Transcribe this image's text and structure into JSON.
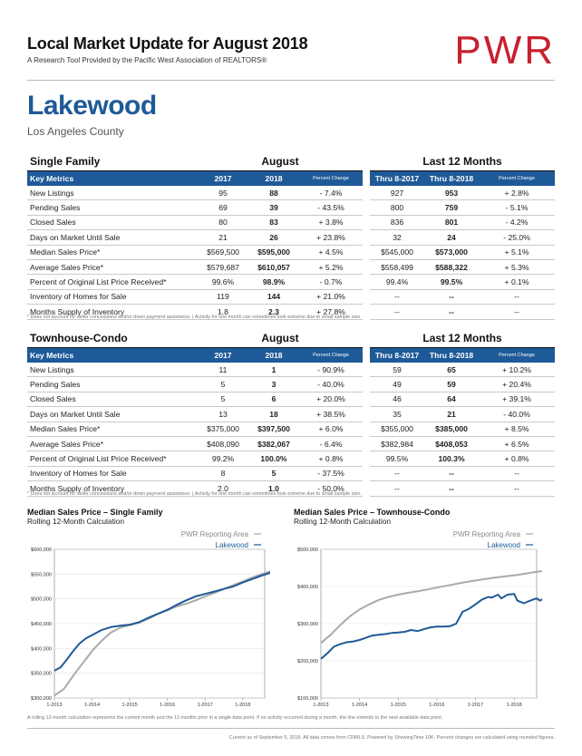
{
  "header": {
    "title": "Local Market Update for August 2018",
    "subtitle": "A Research Tool Provided by the Pacific West Association of REALTORS®",
    "logo_text": "PWR",
    "logo_color": "#c8202f"
  },
  "location": {
    "city": "Lakewood",
    "county": "Los Angeles County"
  },
  "accent_color": "#1f5a98",
  "tables": [
    {
      "section": "Single Family",
      "period_a": "August",
      "period_b": "Last 12 Months",
      "columns": [
        "Key Metrics",
        "2017",
        "2018",
        "Percent Change",
        "Thru 8-2017",
        "Thru 8-2018",
        "Percent Change"
      ],
      "rows": [
        [
          "New Listings",
          "95",
          "88",
          "- 7.4%",
          "927",
          "953",
          "+ 2.8%"
        ],
        [
          "Pending Sales",
          "69",
          "39",
          "- 43.5%",
          "800",
          "759",
          "- 5.1%"
        ],
        [
          "Closed Sales",
          "80",
          "83",
          "+ 3.8%",
          "836",
          "801",
          "- 4.2%"
        ],
        [
          "Days on Market Until Sale",
          "21",
          "26",
          "+ 23.8%",
          "32",
          "24",
          "- 25.0%"
        ],
        [
          "Median Sales Price*",
          "$569,500",
          "$595,000",
          "+ 4.5%",
          "$545,000",
          "$573,000",
          "+ 5.1%"
        ],
        [
          "Average Sales Price*",
          "$579,687",
          "$610,057",
          "+ 5.2%",
          "$558,499",
          "$588,322",
          "+ 5.3%"
        ],
        [
          "Percent of Original List Price Received*",
          "99.6%",
          "98.9%",
          "- 0.7%",
          "99.4%",
          "99.5%",
          "+ 0.1%"
        ],
        [
          "Inventory of Homes for Sale",
          "119",
          "144",
          "+ 21.0%",
          "--",
          "--",
          "--"
        ],
        [
          "Months Supply of Inventory",
          "1.8",
          "2.3",
          "+ 27.8%",
          "--",
          "--",
          "--"
        ]
      ],
      "footnote": "* Does not account for seller concessions and/or down payment assistance.  |  Activity for one month can sometimes look extreme due to small sample size."
    },
    {
      "section": "Townhouse-Condo",
      "period_a": "August",
      "period_b": "Last 12 Months",
      "columns": [
        "Key Metrics",
        "2017",
        "2018",
        "Percent Change",
        "Thru 8-2017",
        "Thru 8-2018",
        "Percent Change"
      ],
      "rows": [
        [
          "New Listings",
          "11",
          "1",
          "- 90.9%",
          "59",
          "65",
          "+ 10.2%"
        ],
        [
          "Pending Sales",
          "5",
          "3",
          "- 40.0%",
          "49",
          "59",
          "+ 20.4%"
        ],
        [
          "Closed Sales",
          "5",
          "6",
          "+ 20.0%",
          "46",
          "64",
          "+ 39.1%"
        ],
        [
          "Days on Market Until Sale",
          "13",
          "18",
          "+ 38.5%",
          "35",
          "21",
          "- 40.0%"
        ],
        [
          "Median Sales Price*",
          "$375,000",
          "$397,500",
          "+ 6.0%",
          "$355,000",
          "$385,000",
          "+ 8.5%"
        ],
        [
          "Average Sales Price*",
          "$408,090",
          "$382,067",
          "- 6.4%",
          "$382,984",
          "$408,053",
          "+ 6.5%"
        ],
        [
          "Percent of Original List Price Received*",
          "99.2%",
          "100.0%",
          "+ 0.8%",
          "99.5%",
          "100.3%",
          "+ 0.8%"
        ],
        [
          "Inventory of Homes for Sale",
          "8",
          "5",
          "- 37.5%",
          "--",
          "--",
          "--"
        ],
        [
          "Months Supply of Inventory",
          "2.0",
          "1.0",
          "- 50.0%",
          "--",
          "--",
          "--"
        ]
      ],
      "footnote": "* Does not account for seller concessions and/or down payment assistance.  |  Activity for one month can sometimes look extreme due to small sample size."
    }
  ],
  "chart_data": [
    {
      "type": "line",
      "title": "Median Sales Price – Single Family",
      "subtitle": "Rolling 12-Month Calculation",
      "x_ticks": [
        "1-2013",
        "1-2014",
        "1-2015",
        "1-2016",
        "1-2017",
        "1-2018"
      ],
      "y_ticks": [
        "$300,000",
        "$350,000",
        "$400,000",
        "$450,000",
        "$500,000",
        "$550,000",
        "$600,000"
      ],
      "ylim": [
        300000,
        600000
      ],
      "x_start": "2013-01",
      "x_end": "2018-08",
      "series": [
        {
          "name": "PWR Reporting Area",
          "color": "#aaaaaa",
          "values": [
            [
              0,
              305000
            ],
            [
              3,
              318000
            ],
            [
              6,
              345000
            ],
            [
              9,
              370000
            ],
            [
              12,
              395000
            ],
            [
              15,
              415000
            ],
            [
              18,
              432000
            ],
            [
              21,
              442000
            ],
            [
              24,
              447000
            ],
            [
              27,
              452000
            ],
            [
              30,
              460000
            ],
            [
              33,
              470000
            ],
            [
              36,
              477000
            ],
            [
              39,
              485000
            ],
            [
              42,
              490000
            ],
            [
              45,
              497000
            ],
            [
              48,
              505000
            ],
            [
              51,
              512000
            ],
            [
              54,
              520000
            ],
            [
              57,
              528000
            ],
            [
              60,
              535000
            ],
            [
              63,
              543000
            ],
            [
              66,
              550000
            ],
            [
              69,
              556000
            ],
            [
              72,
              563000
            ],
            [
              75,
              567000
            ],
            [
              79,
              571000
            ]
          ]
        },
        {
          "name": "Lakewood",
          "color": "#1f5a98",
          "values": [
            [
              0,
              355000
            ],
            [
              2,
              362000
            ],
            [
              4,
              378000
            ],
            [
              6,
              395000
            ],
            [
              8,
              410000
            ],
            [
              10,
              420000
            ],
            [
              12,
              427000
            ],
            [
              15,
              437000
            ],
            [
              18,
              443000
            ],
            [
              21,
              446000
            ],
            [
              24,
              448000
            ],
            [
              27,
              453000
            ],
            [
              30,
              462000
            ],
            [
              33,
              470000
            ],
            [
              36,
              478000
            ],
            [
              39,
              488000
            ],
            [
              42,
              497000
            ],
            [
              45,
              505000
            ],
            [
              48,
              510000
            ],
            [
              51,
              515000
            ],
            [
              54,
              520000
            ],
            [
              57,
              525000
            ],
            [
              60,
              533000
            ],
            [
              63,
              540000
            ],
            [
              66,
              547000
            ],
            [
              69,
              553000
            ],
            [
              72,
              560000
            ],
            [
              75,
              565000
            ],
            [
              79,
              572000
            ]
          ]
        }
      ]
    },
    {
      "type": "line",
      "title": "Median Sales Price – Townhouse-Condo",
      "subtitle": "Rolling 12-Month Calculation",
      "x_ticks": [
        "1-2013",
        "1-2014",
        "1-2015",
        "1-2016",
        "1-2017",
        "1-2018"
      ],
      "y_ticks": [
        "$100,000",
        "$200,000",
        "$300,000",
        "$400,000",
        "$500,000"
      ],
      "ylim": [
        100000,
        500000
      ],
      "x_start": "2013-01",
      "x_end": "2018-08",
      "series": [
        {
          "name": "PWR Reporting Area",
          "color": "#aaaaaa",
          "values": [
            [
              0,
              248000
            ],
            [
              3,
              270000
            ],
            [
              6,
              296000
            ],
            [
              9,
              320000
            ],
            [
              12,
              338000
            ],
            [
              15,
              352000
            ],
            [
              18,
              364000
            ],
            [
              21,
              372000
            ],
            [
              24,
              378000
            ],
            [
              27,
              383000
            ],
            [
              30,
              387000
            ],
            [
              33,
              392000
            ],
            [
              36,
              397000
            ],
            [
              39,
              402000
            ],
            [
              42,
              407000
            ],
            [
              45,
              412000
            ],
            [
              48,
              416000
            ],
            [
              51,
              420000
            ],
            [
              54,
              424000
            ],
            [
              57,
              427000
            ],
            [
              60,
              430000
            ],
            [
              63,
              434000
            ],
            [
              66,
              438000
            ],
            [
              69,
              442000
            ],
            [
              72,
              446000
            ],
            [
              75,
              450000
            ],
            [
              79,
              455000
            ]
          ]
        },
        {
          "name": "Lakewood",
          "color": "#1f5a98",
          "values": [
            [
              0,
              205000
            ],
            [
              2,
              220000
            ],
            [
              4,
              238000
            ],
            [
              6,
              245000
            ],
            [
              8,
              250000
            ],
            [
              10,
              252000
            ],
            [
              12,
              256000
            ],
            [
              14,
              262000
            ],
            [
              16,
              268000
            ],
            [
              18,
              270000
            ],
            [
              20,
              272000
            ],
            [
              22,
              275000
            ],
            [
              24,
              276000
            ],
            [
              26,
              278000
            ],
            [
              28,
              283000
            ],
            [
              30,
              280000
            ],
            [
              32,
              285000
            ],
            [
              34,
              290000
            ],
            [
              36,
              292000
            ],
            [
              38,
              292000
            ],
            [
              40,
              293000
            ],
            [
              42,
              300000
            ],
            [
              44,
              332000
            ],
            [
              46,
              340000
            ],
            [
              48,
              352000
            ],
            [
              50,
              365000
            ],
            [
              52,
              372000
            ],
            [
              53,
              370000
            ],
            [
              55,
              378000
            ],
            [
              56,
              368000
            ],
            [
              58,
              378000
            ],
            [
              60,
              380000
            ],
            [
              61,
              362000
            ],
            [
              63,
              355000
            ],
            [
              65,
              362000
            ],
            [
              67,
              368000
            ],
            [
              68,
              362000
            ],
            [
              70,
              372000
            ],
            [
              72,
              375000
            ],
            [
              74,
              375000
            ],
            [
              76,
              376000
            ],
            [
              78,
              380000
            ],
            [
              79,
              385000
            ]
          ]
        }
      ]
    }
  ],
  "bottom_note": "A rolling 12-month calculation represents the current month and the 11 months prior in a single data point. If no activity occurred during a month, the line extends to the next available data point.",
  "footer": "Current as of September 5, 2018. All data comes from CRMLS. Powered by ShowingTime 10K. Percent changes are calculated using rounded figures."
}
